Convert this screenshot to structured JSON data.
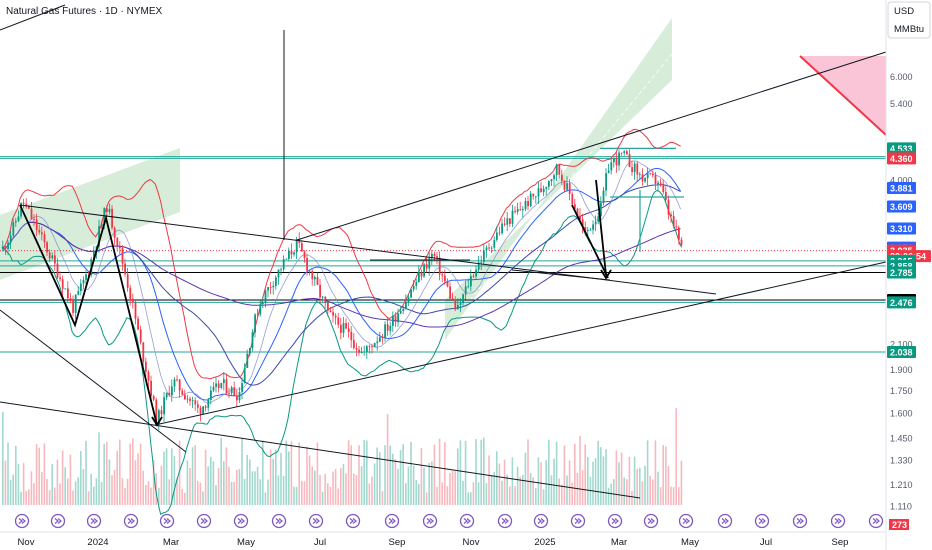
{
  "chart_data": {
    "type": "candlestick",
    "title": "Natural Gas Futures · 1D · NYMEX",
    "currency": "USD",
    "unit": "MMBtu",
    "y_scale": "log",
    "ylim": [
      1.05,
      8.0
    ],
    "x_ticks": [
      "Nov",
      "2024",
      "Mar",
      "May",
      "Jul",
      "Sep",
      "Nov",
      "2025",
      "Mar",
      "May",
      "Jul",
      "Sep"
    ],
    "y_ticks": [
      "6.000",
      "5.400",
      "4.000",
      "2.100",
      "1.900",
      "1.750",
      "1.600",
      "1.450",
      "1.330",
      "1.210",
      "1.110"
    ],
    "price_tags": [
      {
        "label": "4.533",
        "value": 4.533,
        "color": "#089981"
      },
      {
        "label": "4.390",
        "value": 4.39,
        "color": "#089981"
      },
      {
        "label": "4.360",
        "value": 4.36,
        "color": "#f23645"
      },
      {
        "label": "3.881",
        "value": 3.881,
        "color": "#2962ff"
      },
      {
        "label": "3.609",
        "value": 3.609,
        "color": "#2962ff"
      },
      {
        "label": "3.310",
        "value": 3.31,
        "color": "#2962ff"
      },
      {
        "label": "3.070",
        "value": 3.07,
        "color": "#2962ff"
      },
      {
        "label": "3.035",
        "value": 3.035,
        "color": "#f23645"
      },
      {
        "label": "22:06:54",
        "value": 2.97,
        "color": "#f23645"
      },
      {
        "label": "2.915",
        "value": 2.915,
        "color": "#089981"
      },
      {
        "label": "2.858",
        "value": 2.858,
        "color": "#089981"
      },
      {
        "label": "2.785",
        "value": 2.785,
        "color": "#089981"
      },
      {
        "label": "2.500",
        "value": 2.5,
        "color": "#000000"
      },
      {
        "label": "2.476",
        "value": 2.476,
        "color": "#089981"
      },
      {
        "label": "2.038",
        "value": 2.038,
        "color": "#089981"
      }
    ],
    "volume_badge": "273",
    "colors": {
      "up": "#089981",
      "down": "#f23645",
      "band": "#2962ff",
      "mid": "#f23645"
    }
  }
}
